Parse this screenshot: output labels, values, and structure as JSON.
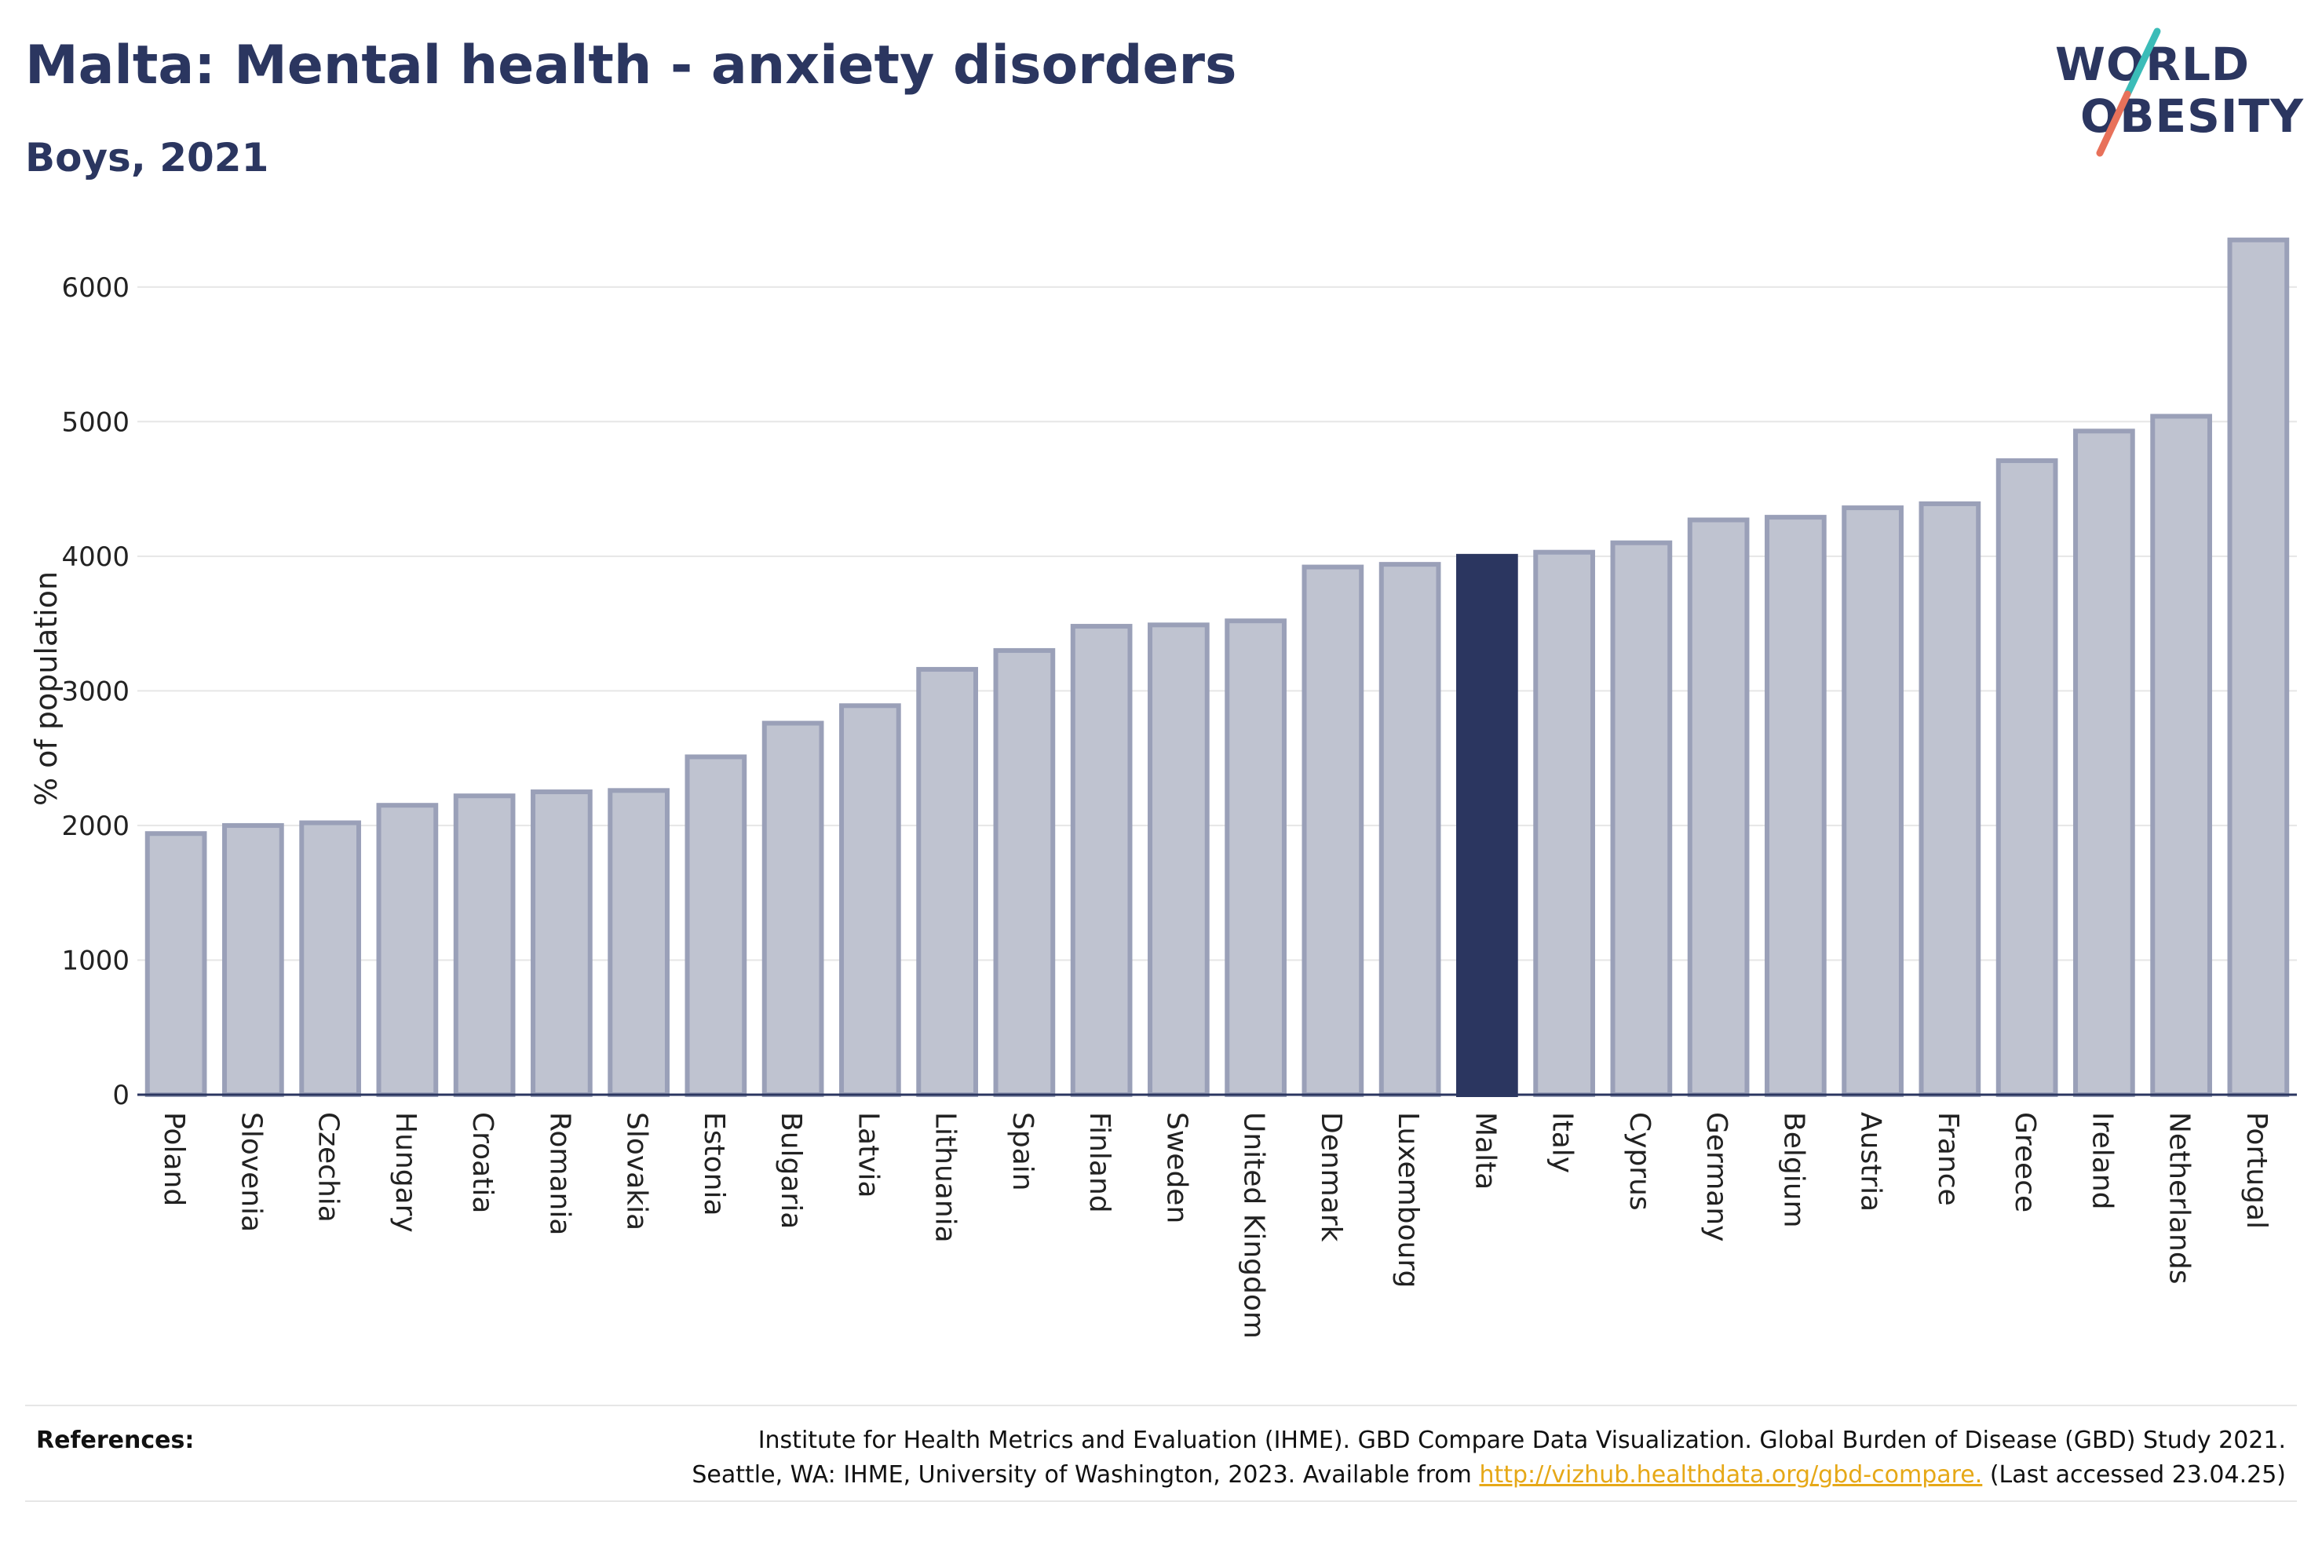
{
  "header": {
    "title": "Malta: Mental health - anxiety disorders",
    "subtitle": "Boys, 2021"
  },
  "logo": {
    "line1": "WORLD",
    "line2": "OBESITY",
    "colors": {
      "text": "#2b3660",
      "slash_top": "#3bbcb8",
      "slash_bottom": "#e8715a"
    }
  },
  "chart_data": {
    "type": "bar",
    "title": "Malta: Mental health - anxiety disorders",
    "subtitle": "Boys, 2021",
    "xlabel": "",
    "ylabel": "% of population",
    "ylim": [
      0,
      6500
    ],
    "yticks": [
      0,
      1000,
      2000,
      3000,
      4000,
      5000,
      6000
    ],
    "grid": true,
    "highlight": "Malta",
    "colors": {
      "default": "#bfc3d0",
      "default_border": "#9aa0b8",
      "highlight": "#2b3660",
      "grid": "#e6e6e6",
      "axis": "#2b3660"
    },
    "categories": [
      "Poland",
      "Slovenia",
      "Czechia",
      "Hungary",
      "Croatia",
      "Romania",
      "Slovakia",
      "Estonia",
      "Bulgaria",
      "Latvia",
      "Lithuania",
      "Spain",
      "Finland",
      "Sweden",
      "United Kingdom",
      "Denmark",
      "Luxembourg",
      "Malta",
      "Italy",
      "Cyprus",
      "Germany",
      "Belgium",
      "Austria",
      "France",
      "Greece",
      "Ireland",
      "Netherlands",
      "Portugal"
    ],
    "values": [
      1940,
      2000,
      2020,
      2150,
      2220,
      2250,
      2260,
      2510,
      2760,
      2890,
      3160,
      3300,
      3480,
      3490,
      3520,
      3920,
      3940,
      4000,
      4030,
      4100,
      4270,
      4290,
      4360,
      4390,
      4710,
      4930,
      5040,
      6350
    ]
  },
  "references": {
    "label": "References:",
    "line1": "Institute for Health Metrics and Evaluation (IHME). GBD Compare Data Visualization. Global Burden of Disease (GBD) Study 2021.",
    "line2_prefix": "Seattle, WA: IHME, University of Washington, 2023. Available from ",
    "link_text": "http://vizhub.healthdata.org/gbd-compare.",
    "line2_suffix": " (Last accessed 23.04.25)"
  }
}
